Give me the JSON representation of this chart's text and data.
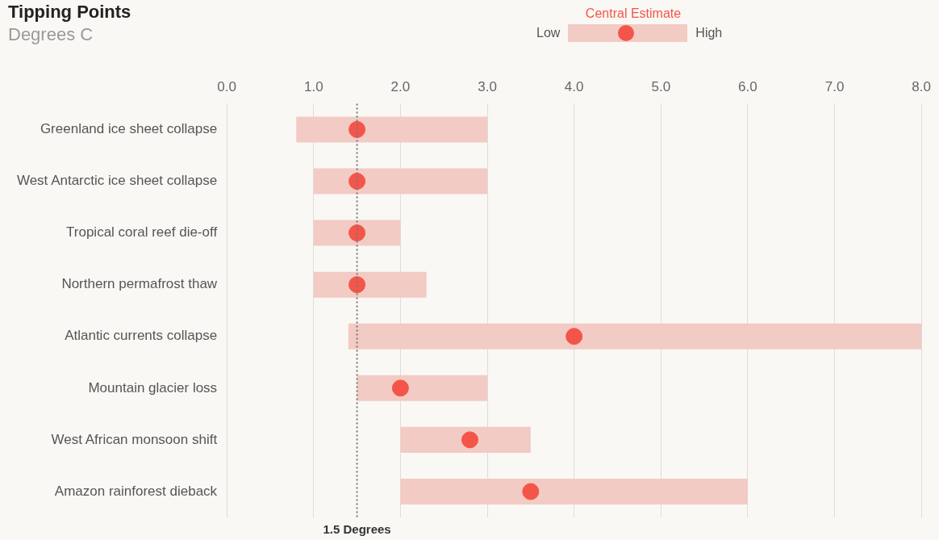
{
  "chart_data": {
    "type": "bar",
    "orientation": "horizontal",
    "title": "Tipping Points",
    "subtitle": "Degrees C",
    "categories": [
      "Greenland ice sheet collapse",
      "West Antarctic ice sheet collapse",
      "Tropical coral reef die-off",
      "Northern permafrost thaw",
      "Atlantic currents collapse",
      "Mountain glacier loss",
      "West African monsoon shift",
      "Amazon rainforest dieback"
    ],
    "series": [
      {
        "type": "bar",
        "color": "#f2cbc4",
        "base": [
          0.8,
          1.0,
          1.0,
          1.0,
          1.4,
          1.5,
          2.0,
          2.0
        ],
        "values": [
          2.2,
          2.0,
          1.0,
          1.3,
          6.6,
          1.5,
          1.5,
          4.0
        ]
      },
      {
        "type": "scatter",
        "name": "Central Estimate",
        "color": "#f4554a",
        "marker": "circle",
        "values": [
          1.5,
          1.5,
          1.5,
          1.5,
          4.0,
          2.0,
          2.8,
          3.5
        ]
      }
    ],
    "xlim": [
      0,
      8
    ],
    "xticks": [
      {
        "value": 0,
        "label": "0.0"
      },
      {
        "value": 1,
        "label": "1.0"
      },
      {
        "value": 2,
        "label": "2.0"
      },
      {
        "value": 3,
        "label": "3.0"
      },
      {
        "value": 4,
        "label": "4.0"
      },
      {
        "value": 5,
        "label": "5.0"
      },
      {
        "value": 6,
        "label": "6.0"
      },
      {
        "value": 7,
        "label": "7.0"
      },
      {
        "value": 8,
        "label": "8.0"
      }
    ],
    "grid": "x",
    "legend": "top",
    "ref_lines": [
      {
        "axis": "x",
        "value": 1.5,
        "label": "1.5 Degrees",
        "color": "#777777",
        "line_style": "dotted"
      }
    ],
    "annotations": [
      "Low",
      "High"
    ]
  }
}
